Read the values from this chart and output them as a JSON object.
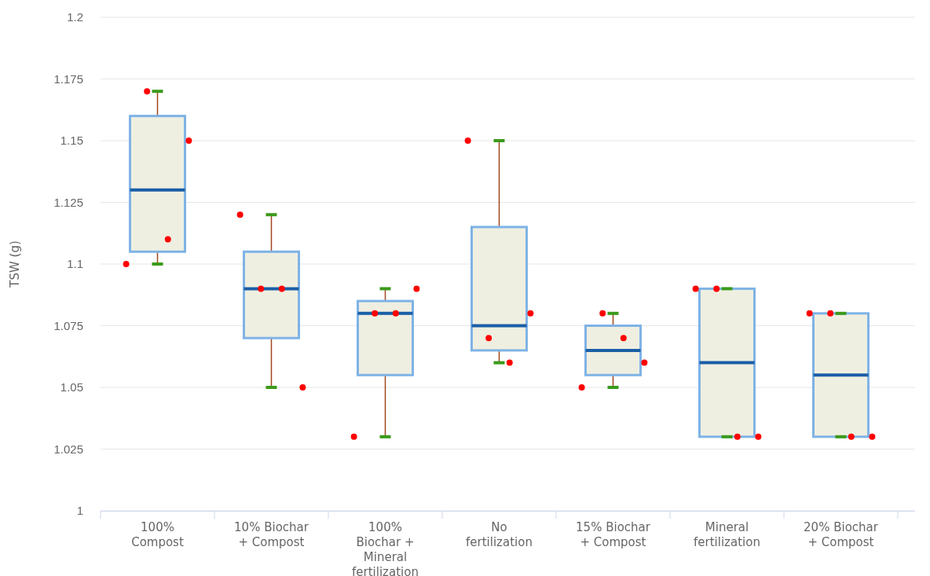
{
  "chart_data": {
    "type": "box",
    "ylabel": "TSW (g)",
    "categories": [
      "100% Compost",
      "10% Biochar + Compost",
      "100% Biochar + Mineral fertilization",
      "No fertilization",
      "15% Biochar + Compost",
      "Mineral fertilization",
      "20% Biochar + Compost"
    ],
    "ylim": [
      1,
      1.2
    ],
    "yticks": [
      1,
      1.025,
      1.05,
      1.075,
      1.1,
      1.125,
      1.15,
      1.175,
      1.2
    ],
    "grid": "y",
    "series": [
      {
        "color": "#efefe1",
        "boxes": [
          {
            "low": 1.1,
            "q1": 1.105,
            "median": 1.13,
            "q3": 1.16,
            "high": 1.17
          },
          {
            "low": 1.05,
            "q1": 1.07,
            "median": 1.09,
            "q3": 1.105,
            "high": 1.12
          },
          {
            "low": 1.03,
            "q1": 1.055,
            "median": 1.08,
            "q3": 1.085,
            "high": 1.09
          },
          {
            "low": 1.06,
            "q1": 1.065,
            "median": 1.075,
            "q3": 1.115,
            "high": 1.15
          },
          {
            "low": 1.05,
            "q1": 1.055,
            "median": 1.065,
            "q3": 1.075,
            "high": 1.08
          },
          {
            "low": 1.03,
            "q1": 1.03,
            "median": 1.06,
            "q3": 1.09,
            "high": 1.09
          },
          {
            "low": 1.03,
            "q1": 1.03,
            "median": 1.055,
            "q3": 1.08,
            "high": 1.08
          }
        ]
      },
      {
        "type": "scatter",
        "color": "#ff0000",
        "marker": "circle",
        "x": [
          "100% Compost",
          "100% Compost",
          "100% Compost",
          "100% Compost",
          "10% Biochar + Compost",
          "10% Biochar + Compost",
          "10% Biochar + Compost",
          "10% Biochar + Compost",
          "100% Biochar + Mineral fertilization",
          "100% Biochar + Mineral fertilization",
          "100% Biochar + Mineral fertilization",
          "100% Biochar + Mineral fertilization",
          "No fertilization",
          "No fertilization",
          "No fertilization",
          "No fertilization",
          "15% Biochar + Compost",
          "15% Biochar + Compost",
          "15% Biochar + Compost",
          "15% Biochar + Compost",
          "Mineral fertilization",
          "Mineral fertilization",
          "Mineral fertilization",
          "Mineral fertilization",
          "20% Biochar + Compost",
          "20% Biochar + Compost",
          "20% Biochar + Compost",
          "20% Biochar + Compost"
        ],
        "values": [
          1.1,
          1.17,
          1.11,
          1.15,
          1.12,
          1.09,
          1.09,
          1.05,
          1.03,
          1.08,
          1.08,
          1.09,
          1.15,
          1.07,
          1.06,
          1.08,
          1.05,
          1.08,
          1.07,
          1.06,
          1.09,
          1.09,
          1.03,
          1.03,
          1.08,
          1.08,
          1.03,
          1.03
        ]
      }
    ]
  }
}
